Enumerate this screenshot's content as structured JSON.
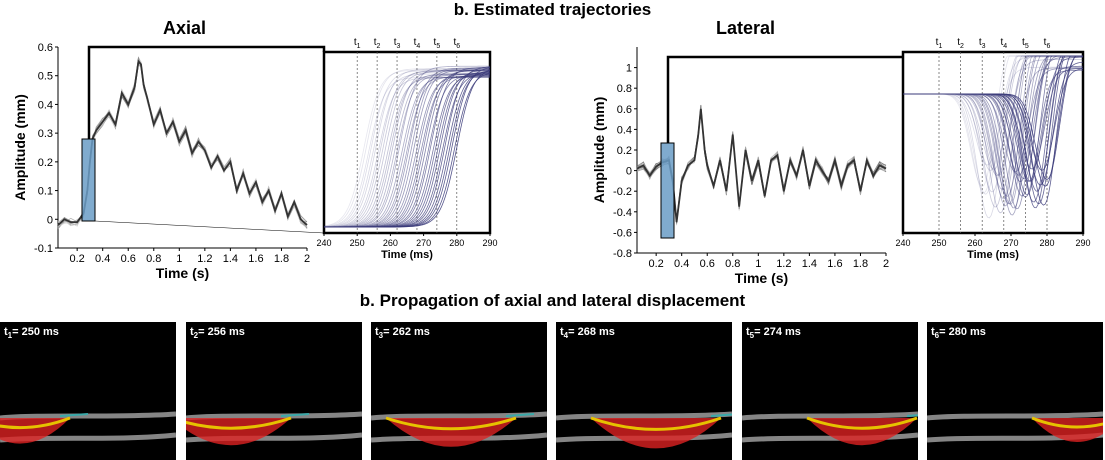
{
  "titles": {
    "estimated_trajectories": "b. Estimated trajectories",
    "axial": "Axial",
    "lateral": "Lateral",
    "propagation": "b. Propagation of axial and lateral displacement"
  },
  "colors": {
    "trace": "#333333",
    "zoom_trace": "#3b3b7a",
    "roi_box": "#6a9cc6"
  },
  "chart_data": [
    {
      "type": "line",
      "name": "axial-trajectory",
      "xlabel": "Time (s)",
      "ylabel": "Amplitude (mm)",
      "xlim": [
        0.05,
        2.0
      ],
      "ylim": [
        -0.1,
        0.6
      ],
      "xticks": [
        "0.2",
        "0.4",
        "0.6",
        "0.8",
        "1",
        "1.2",
        "1.4",
        "1.6",
        "1.8",
        "2"
      ],
      "yticks": [
        "-0.1",
        "0",
        "0.1",
        "0.2",
        "0.3",
        "0.4",
        "0.5",
        "0.6"
      ],
      "series": [
        {
          "x": [
            0.05,
            0.1,
            0.15,
            0.2,
            0.25,
            0.28,
            0.3,
            0.32,
            0.35,
            0.4,
            0.45,
            0.5,
            0.55,
            0.6,
            0.65,
            0.68,
            0.7,
            0.72,
            0.75,
            0.8,
            0.85,
            0.9,
            0.95,
            1.0,
            1.05,
            1.1,
            1.15,
            1.2,
            1.25,
            1.3,
            1.35,
            1.4,
            1.45,
            1.5,
            1.55,
            1.6,
            1.65,
            1.7,
            1.75,
            1.8,
            1.85,
            1.9,
            1.95,
            2.0
          ],
          "values": [
            -0.02,
            0.0,
            -0.01,
            -0.01,
            0.02,
            0.1,
            0.2,
            0.28,
            0.31,
            0.34,
            0.37,
            0.33,
            0.44,
            0.4,
            0.46,
            0.55,
            0.54,
            0.47,
            0.42,
            0.33,
            0.38,
            0.3,
            0.34,
            0.27,
            0.31,
            0.23,
            0.27,
            0.24,
            0.18,
            0.22,
            0.17,
            0.2,
            0.1,
            0.16,
            0.09,
            0.13,
            0.06,
            0.1,
            0.03,
            0.09,
            0.01,
            0.06,
            0.0,
            -0.02
          ]
        }
      ]
    },
    {
      "type": "line",
      "name": "axial-zoom",
      "xlabel": "Time (ms)",
      "xlim": [
        240,
        290
      ],
      "xticks": [
        "240",
        "250",
        "260",
        "270",
        "280",
        "290"
      ],
      "markers": [
        {
          "label": "t",
          "sub": "1",
          "x": 250
        },
        {
          "label": "t",
          "sub": "2",
          "x": 256
        },
        {
          "label": "t",
          "sub": "3",
          "x": 262
        },
        {
          "label": "t",
          "sub": "4",
          "x": 268
        },
        {
          "label": "t",
          "sub": "5",
          "x": 274
        },
        {
          "label": "t",
          "sub": "6",
          "x": 280
        }
      ],
      "sigmoid_center_range": [
        252,
        280
      ],
      "curves": 40
    },
    {
      "type": "line",
      "name": "lateral-trajectory",
      "xlabel": "Time (s)",
      "ylabel": "Amplitude (mm)",
      "xlim": [
        0.05,
        2.0
      ],
      "ylim": [
        -0.8,
        1.2
      ],
      "xticks": [
        "0.2",
        "0.4",
        "0.6",
        "0.8",
        "1",
        "1.2",
        "1.4",
        "1.6",
        "1.8",
        "2"
      ],
      "yticks": [
        "-0.8",
        "-0.6",
        "-0.4",
        "-0.2",
        "0",
        "0.2",
        "0.4",
        "0.6",
        "0.8",
        "1"
      ],
      "series": [
        {
          "x": [
            0.05,
            0.1,
            0.15,
            0.2,
            0.25,
            0.3,
            0.33,
            0.36,
            0.4,
            0.45,
            0.5,
            0.53,
            0.55,
            0.58,
            0.6,
            0.65,
            0.7,
            0.75,
            0.8,
            0.85,
            0.9,
            0.95,
            1.0,
            1.05,
            1.1,
            1.15,
            1.2,
            1.25,
            1.3,
            1.35,
            1.4,
            1.45,
            1.5,
            1.55,
            1.6,
            1.65,
            1.7,
            1.75,
            1.8,
            1.85,
            1.9,
            1.95,
            2.0
          ],
          "values": [
            0.02,
            0.05,
            -0.05,
            0.04,
            0.08,
            0.1,
            -0.1,
            -0.5,
            -0.1,
            0.05,
            0.1,
            0.35,
            0.6,
            0.2,
            0.05,
            -0.15,
            0.1,
            -0.2,
            0.35,
            -0.35,
            0.2,
            -0.1,
            0.1,
            -0.25,
            0.1,
            0.15,
            -0.2,
            0.1,
            -0.05,
            0.2,
            -0.15,
            0.1,
            0.0,
            -0.1,
            0.1,
            -0.15,
            0.05,
            0.1,
            -0.2,
            0.1,
            -0.05,
            0.05,
            0.02
          ]
        }
      ]
    },
    {
      "type": "line",
      "name": "lateral-zoom",
      "xlabel": "Time (ms)",
      "xlim": [
        240,
        290
      ],
      "xticks": [
        "240",
        "250",
        "260",
        "270",
        "280",
        "290"
      ],
      "markers": [
        {
          "label": "t",
          "sub": "1",
          "x": 250
        },
        {
          "label": "t",
          "sub": "2",
          "x": 256
        },
        {
          "label": "t",
          "sub": "3",
          "x": 262
        },
        {
          "label": "t",
          "sub": "4",
          "x": 268
        },
        {
          "label": "t",
          "sub": "5",
          "x": 274
        },
        {
          "label": "t",
          "sub": "6",
          "x": 280
        }
      ],
      "dip_center_range": [
        262,
        280
      ],
      "curves": 40
    }
  ],
  "panels": [
    {
      "t": "t",
      "sub": "1",
      "label": "= 250 ms"
    },
    {
      "t": "t",
      "sub": "2",
      "label": "= 256 ms"
    },
    {
      "t": "t",
      "sub": "3",
      "label": "= 262 ms"
    },
    {
      "t": "t",
      "sub": "4",
      "label": "= 268 ms"
    },
    {
      "t": "t",
      "sub": "5",
      "label": "= 274 ms"
    },
    {
      "t": "t",
      "sub": "6",
      "label": "= 280 ms"
    }
  ]
}
